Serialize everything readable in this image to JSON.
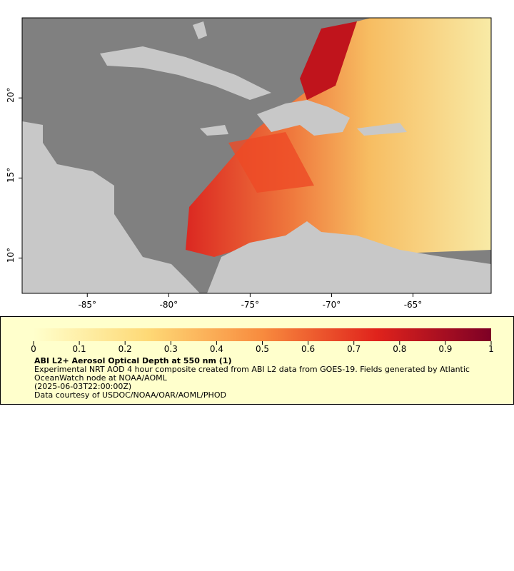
{
  "map": {
    "xlim": [
      -89,
      -60.2
    ],
    "ylim": [
      7.8,
      25
    ],
    "xticks": [
      {
        "value": -85,
        "label": "-85°"
      },
      {
        "value": -80,
        "label": "-80°"
      },
      {
        "value": -75,
        "label": "-75°"
      },
      {
        "value": -70,
        "label": "-70°"
      },
      {
        "value": -65,
        "label": "-65°"
      }
    ],
    "yticks": [
      {
        "value": 10,
        "label": "10°"
      },
      {
        "value": 15,
        "label": "15°"
      },
      {
        "value": 20,
        "label": "20°"
      }
    ]
  },
  "colorbar": {
    "lim": [
      0,
      1
    ],
    "ticks": [
      0,
      0.1,
      0.2,
      0.3,
      0.4,
      0.5,
      0.6,
      0.7,
      0.8,
      0.9,
      1
    ]
  },
  "legend": {
    "title": "ABI L2+ Aerosol Optical Depth at 550 nm (1)",
    "description": "Experimental NRT AOD 4 hour composite created from ABI L2 data from GOES-19. Fields generated by Atlantic OceanWatch node at NOAA/AOML",
    "time": "(2025-06-03T22:00:00Z)",
    "credit": "Data courtesy of USDOC/NOAA/OAR/AOML/PHOD"
  }
}
